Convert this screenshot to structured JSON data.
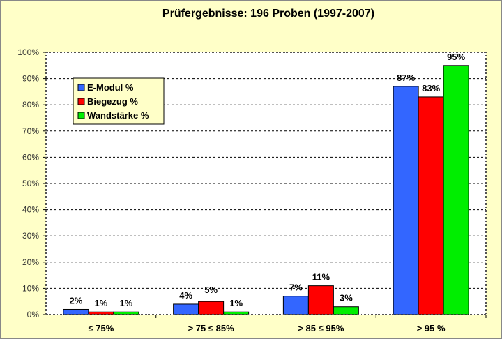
{
  "chart_data": {
    "type": "bar",
    "title": "Prüfergebnisse: 196 Proben (1997-2007)",
    "xlabel": "",
    "ylabel": "",
    "ylim": [
      0,
      100
    ],
    "yticks": [
      "0%",
      "10%",
      "20%",
      "30%",
      "40%",
      "50%",
      "60%",
      "70%",
      "80%",
      "90%",
      "100%"
    ],
    "grid": true,
    "legend_position": "top-left",
    "categories": [
      "≤ 75%",
      "> 75 ≤ 85%",
      "> 85 ≤ 95%",
      "> 95 %"
    ],
    "series": [
      {
        "name": "E-Modul %",
        "color": "#3366FF",
        "values": [
          2,
          4,
          7,
          87
        ],
        "labels": [
          "2%",
          "4%",
          "7%",
          "87%"
        ]
      },
      {
        "name": "Biegezug %",
        "color": "#FF0000",
        "values": [
          1,
          5,
          11,
          83
        ],
        "labels": [
          "1%",
          "5%",
          "11%",
          "83%"
        ]
      },
      {
        "name": "Wandstärke %",
        "color": "#00EE00",
        "values": [
          1,
          1,
          3,
          95
        ],
        "labels": [
          "1%",
          "1%",
          "3%",
          "95%"
        ]
      }
    ]
  }
}
